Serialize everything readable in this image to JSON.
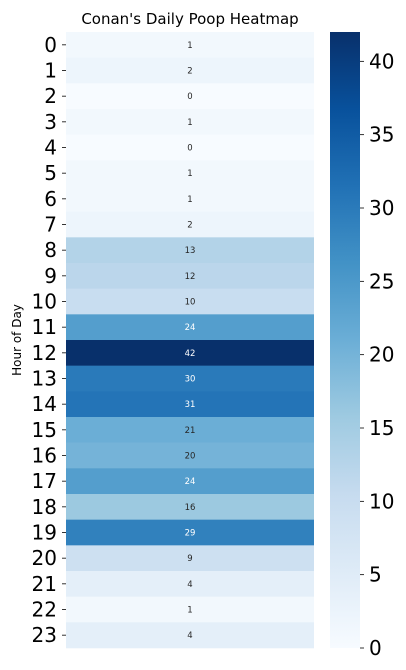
{
  "chart_data": {
    "type": "heatmap",
    "title": "Conan's Daily Poop Heatmap",
    "ylabel": "Hour of Day",
    "xlabel": "",
    "rows": [
      "0",
      "1",
      "2",
      "3",
      "4",
      "5",
      "6",
      "7",
      "8",
      "9",
      "10",
      "11",
      "12",
      "13",
      "14",
      "15",
      "16",
      "17",
      "18",
      "19",
      "20",
      "21",
      "22",
      "23"
    ],
    "values": [
      1,
      2,
      0,
      1,
      0,
      1,
      1,
      2,
      13,
      12,
      10,
      24,
      42,
      30,
      31,
      21,
      20,
      24,
      16,
      29,
      9,
      4,
      1,
      4
    ],
    "colorscale": "Blues",
    "vmin": 0,
    "vmax": 42,
    "colorbar_ticks": [
      0,
      5,
      10,
      15,
      20,
      25,
      30,
      35,
      40
    ],
    "annotations": true
  }
}
